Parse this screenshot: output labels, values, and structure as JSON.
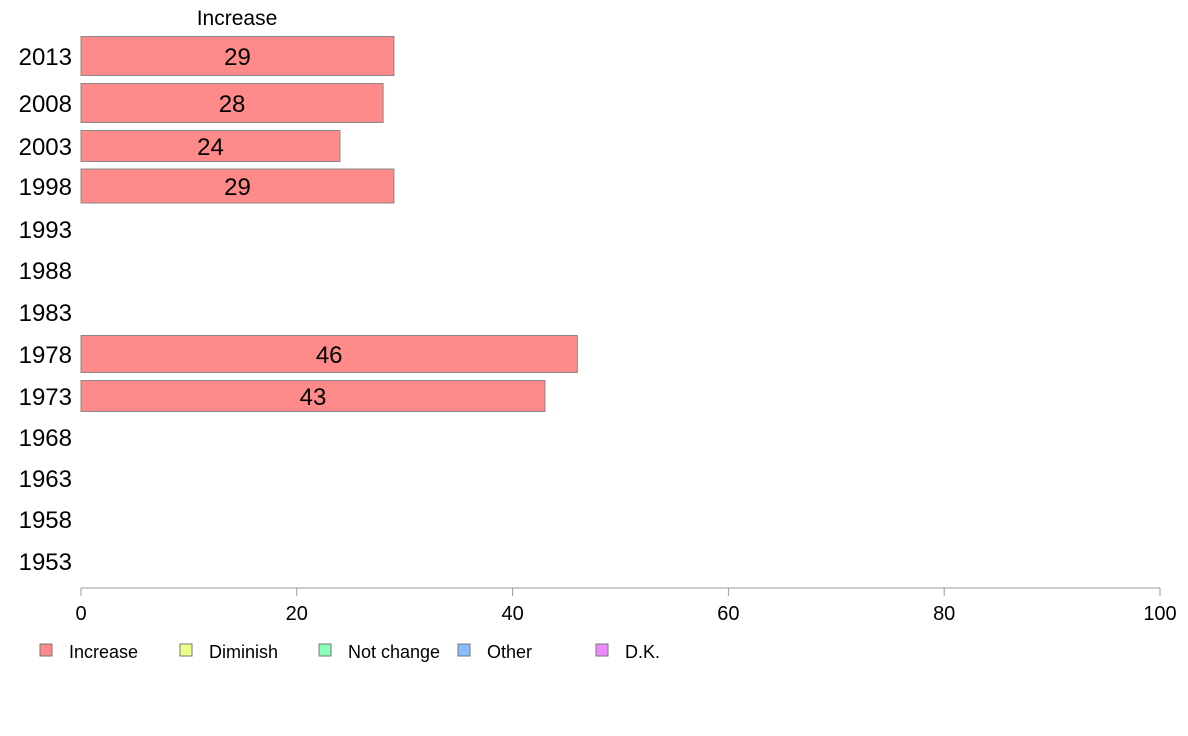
{
  "chart_data": {
    "type": "bar",
    "orientation": "horizontal",
    "title": "Increase",
    "categories": [
      "2013",
      "2008",
      "2003",
      "1998",
      "1993",
      "1988",
      "1983",
      "1978",
      "1973",
      "1968",
      "1963",
      "1958",
      "1953"
    ],
    "series": [
      {
        "name": "Increase",
        "color": "#ff8a8a",
        "values": [
          29,
          28,
          24,
          29,
          null,
          null,
          null,
          46,
          43,
          null,
          null,
          null,
          null
        ]
      }
    ],
    "data_labels": [
      "29",
      "28",
      "24",
      "29",
      "",
      "",
      "",
      "46",
      "43",
      "",
      "",
      "",
      ""
    ],
    "xlim": [
      0,
      100
    ],
    "xticks": [
      0,
      20,
      40,
      60,
      80,
      100
    ],
    "grid": false,
    "legend": {
      "position": "bottom",
      "items": [
        {
          "label": "Increase",
          "color": "#ff8a8a"
        },
        {
          "label": "Diminish",
          "color": "#eeff88"
        },
        {
          "label": "Not change",
          "color": "#88ffbb"
        },
        {
          "label": "Other",
          "color": "#88bbff"
        },
        {
          "label": "D.K.",
          "color": "#ee88ff"
        }
      ]
    }
  }
}
